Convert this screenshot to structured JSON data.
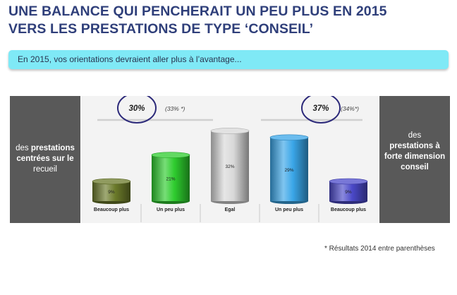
{
  "title": {
    "line1": "UNE BALANCE QUI PENCHERAIT UN PEU PLUS EN 2015",
    "line2": "VERS LES PRESTATIONS DE TYPE ‘CONSEIL’"
  },
  "subtitle": "En 2015, vos orientations devraient aller plus à l’avantage...",
  "left_panel": {
    "pre": "des ",
    "bold": "prestations centrées sur le",
    "post": " recueil"
  },
  "right_panel": {
    "pre": "des ",
    "bold": "prestations à forte dimension conseil"
  },
  "footnote": "* Résultats 2014 entre parenthèses",
  "chart_data": {
    "type": "bar",
    "categories": [
      "Beaucoup plus",
      "Un peu plus",
      "Egal",
      "Un peu plus",
      "Beaucoup plus"
    ],
    "values": [
      9,
      21,
      32,
      29,
      9
    ],
    "value_labels": [
      "9%",
      "21%",
      "32%",
      "29%",
      "9%"
    ],
    "ylim": [
      0,
      36
    ],
    "bar_colors": [
      "#6b7a2a",
      "#2ecc2e",
      "#d8d8d8",
      "#3aa6e8",
      "#4b49c9"
    ],
    "annotations": [
      {
        "value": "30%",
        "previous": "(33% *)",
        "group": "left"
      },
      {
        "value": "37%",
        "previous": "(34%*)",
        "group": "right"
      }
    ]
  }
}
